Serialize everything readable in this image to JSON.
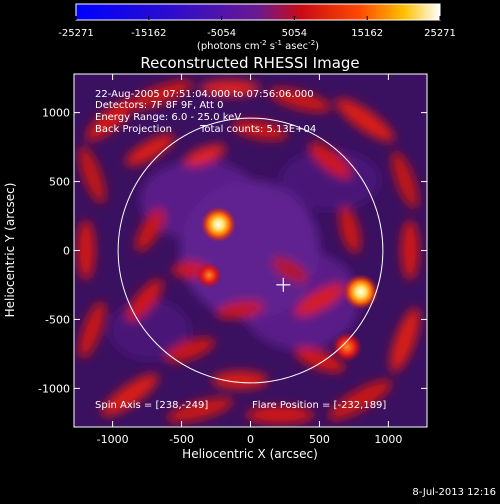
{
  "colorbar": {
    "ticks": [
      "-25271",
      "-15162",
      "-5054",
      "5054",
      "15162",
      "25271"
    ],
    "min": -25271,
    "max": 25271,
    "unit_base": "(photons cm",
    "unit_sup1": "-2",
    "unit_mid": " s",
    "unit_sup2": "-1",
    "unit_end": " asec",
    "unit_sup3": "-2",
    "unit_close": ")"
  },
  "info": {
    "line1": "22-Aug-2005 07:51:04.000 to 07:56:06.000",
    "line2": "Detectors: 7F 8F 9F, Att 0",
    "line3": "Energy Range: 6.0 - 25.0 keV",
    "line4a": "Back Projection",
    "line4b": "Total counts: 5.13E+04",
    "spin_axis": "Spin Axis = [238,-249]",
    "flare_position": "Flare Position = [-232,189]"
  },
  "footer": {
    "date": "8-Jul-2013 12:16"
  },
  "colors": {
    "text": "#ffffff",
    "background": "#000000",
    "image_base": "#4a1670"
  },
  "chart_data": {
    "type": "heatmap",
    "title": "Reconstructed RHESSI Image",
    "xlabel": "Heliocentric X (arcsec)",
    "ylabel": "Heliocentric Y (arcsec)",
    "xlim": [
      -1280,
      1280
    ],
    "ylim": [
      -1280,
      1280
    ],
    "xticks": [
      -1000,
      -500,
      0,
      500,
      1000
    ],
    "yticks": [
      -1000,
      -500,
      0,
      500,
      1000
    ],
    "xtick_labels": [
      "-1000",
      "-500",
      "0",
      "500",
      "1000"
    ],
    "ytick_labels": [
      "-1000",
      "-500",
      "0",
      "500",
      "1000"
    ],
    "solar_disk": {
      "center": [
        0,
        0
      ],
      "radius": 960
    },
    "crosshair": [
      238,
      -249
    ],
    "sources": [
      {
        "x": -232,
        "y": 189,
        "intensity": 25271
      },
      {
        "x": 800,
        "y": -300,
        "intensity": 25271
      },
      {
        "x": 700,
        "y": -700,
        "intensity": 18000
      },
      {
        "x": -300,
        "y": -180,
        "intensity": 12000
      }
    ]
  }
}
